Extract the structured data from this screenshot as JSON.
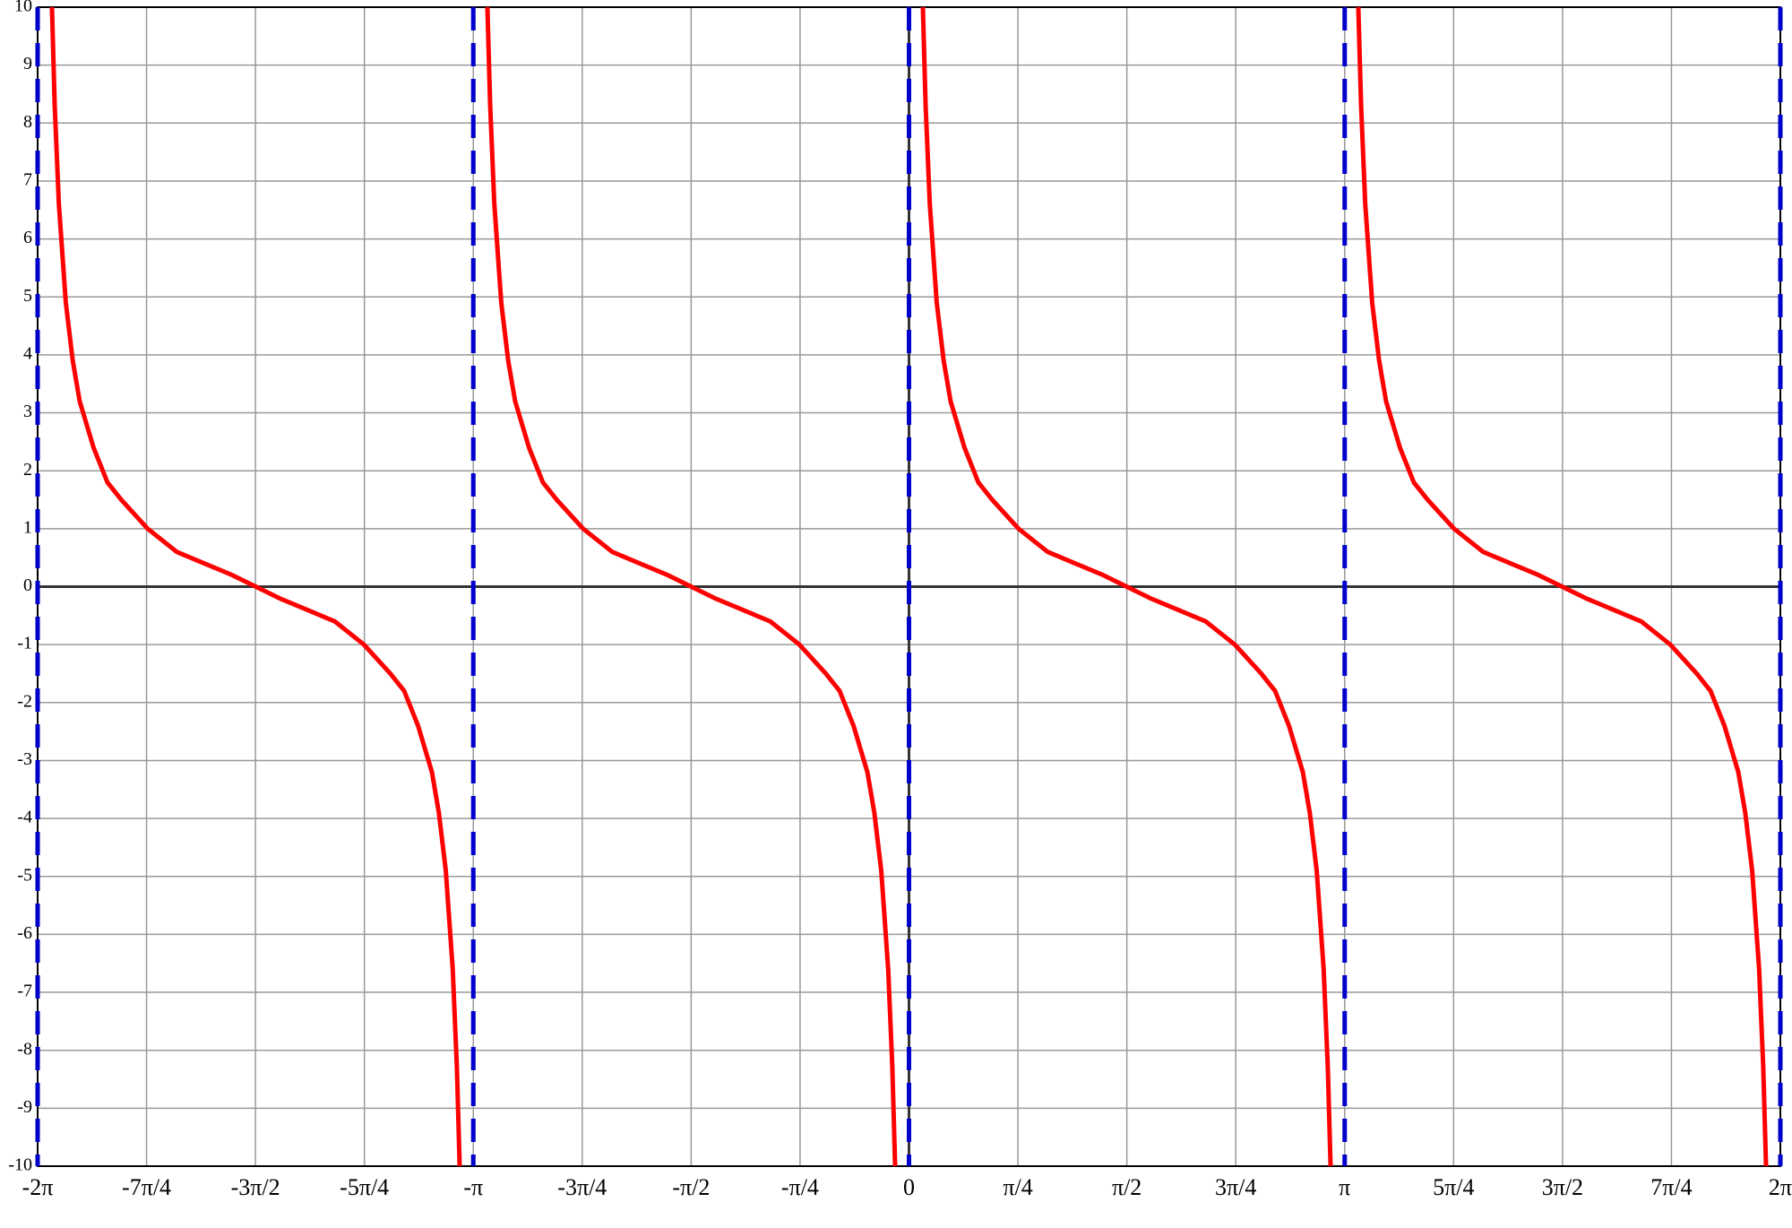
{
  "chart_data": {
    "type": "line",
    "xlim": [
      -6.2832,
      6.2832
    ],
    "ylim": [
      -10,
      10
    ],
    "yticks": [
      -10,
      -9,
      -8,
      -7,
      -6,
      -5,
      -4,
      -3,
      -2,
      -1,
      0,
      1,
      2,
      3,
      4,
      5,
      6,
      7,
      8,
      9,
      10
    ],
    "xticks": [
      {
        "value": -6.2832,
        "label": "-2π"
      },
      {
        "value": -5.4978,
        "label": "-7π/4"
      },
      {
        "value": -4.7124,
        "label": "-3π/2"
      },
      {
        "value": -3.927,
        "label": "-5π/4"
      },
      {
        "value": -3.1416,
        "label": "-π"
      },
      {
        "value": -2.3562,
        "label": "-3π/4"
      },
      {
        "value": -1.5708,
        "label": "-π/2"
      },
      {
        "value": -0.7854,
        "label": "-π/4"
      },
      0,
      {
        "value": 0.7854,
        "label": "π/4"
      },
      {
        "value": 1.5708,
        "label": "π/2"
      },
      {
        "value": 2.3562,
        "label": "3π/4"
      },
      {
        "value": 3.1416,
        "label": "π"
      },
      {
        "value": 3.927,
        "label": "5π/4"
      },
      {
        "value": 4.7124,
        "label": "3π/2"
      },
      {
        "value": 5.4978,
        "label": "7π/4"
      },
      {
        "value": 6.2832,
        "label": "2π"
      }
    ],
    "grid": true,
    "asymptotes": {
      "color": "#0000cc",
      "x": [
        -6.2832,
        -3.1416,
        0,
        3.1416,
        6.2832
      ]
    },
    "series": [
      {
        "color": "#ff0000",
        "x": [
          -6.18,
          -6.16,
          -6.13,
          -6.08,
          -6.03,
          -5.98,
          -5.88,
          -5.78,
          -5.68,
          -5.49,
          -5.28,
          -5.08,
          -4.88,
          -4.71,
          -4.54,
          -4.34,
          -4.14,
          -3.93,
          -3.74,
          -3.64,
          -3.54,
          -3.44,
          -3.39,
          -3.34,
          -3.29,
          -3.26,
          -3.24,
          null,
          -3.04,
          -3.02,
          -2.99,
          -2.94,
          -2.89,
          -2.84,
          -2.74,
          -2.64,
          -2.54,
          -2.35,
          -2.14,
          -1.94,
          -1.74,
          -1.57,
          -1.4,
          -1.2,
          -1.0,
          -0.79,
          -0.6,
          -0.5,
          -0.4,
          -0.3,
          -0.25,
          -0.2,
          -0.15,
          -0.12,
          -0.1,
          null,
          0.1,
          0.12,
          0.15,
          0.2,
          0.25,
          0.3,
          0.4,
          0.5,
          0.6,
          0.79,
          1.0,
          1.2,
          1.4,
          1.57,
          1.74,
          1.94,
          2.14,
          2.35,
          2.54,
          2.64,
          2.74,
          2.84,
          2.89,
          2.94,
          2.99,
          3.02,
          3.04,
          null,
          3.24,
          3.26,
          3.29,
          3.34,
          3.39,
          3.44,
          3.54,
          3.64,
          3.74,
          3.93,
          4.14,
          4.34,
          4.54,
          4.71,
          4.88,
          5.08,
          5.28,
          5.49,
          5.68,
          5.78,
          5.88,
          5.98,
          6.03,
          6.08,
          6.13,
          6.16,
          6.18
        ],
        "values": [
          10,
          8.3,
          6.6,
          4.9,
          3.9,
          3.2,
          2.4,
          1.8,
          1.5,
          1,
          0.6,
          0.4,
          0.2,
          0,
          -0.2,
          -0.4,
          -0.6,
          -1,
          -1.5,
          -1.8,
          -2.4,
          -3.2,
          -3.9,
          -4.9,
          -6.6,
          -8.3,
          -10,
          null,
          10,
          8.3,
          6.6,
          4.9,
          3.9,
          3.2,
          2.4,
          1.8,
          1.5,
          1,
          0.6,
          0.4,
          0.2,
          0,
          -0.2,
          -0.4,
          -0.6,
          -1,
          -1.5,
          -1.8,
          -2.4,
          -3.2,
          -3.9,
          -4.9,
          -6.6,
          -8.3,
          -10,
          null,
          10,
          8.3,
          6.6,
          4.9,
          3.9,
          3.2,
          2.4,
          1.8,
          1.5,
          1,
          0.6,
          0.4,
          0.2,
          0,
          -0.2,
          -0.4,
          -0.6,
          -1,
          -1.5,
          -1.8,
          -2.4,
          -3.2,
          -3.9,
          -4.9,
          -6.6,
          -8.3,
          -10,
          null,
          10,
          8.3,
          6.6,
          4.9,
          3.9,
          3.2,
          2.4,
          1.8,
          1.5,
          1,
          0.6,
          0.4,
          0.2,
          0,
          -0.2,
          -0.4,
          -0.6,
          -1,
          -1.5,
          -1.8,
          -2.4,
          -3.2,
          -3.9,
          -4.9,
          -6.6,
          -8.3,
          -10
        ]
      }
    ]
  }
}
